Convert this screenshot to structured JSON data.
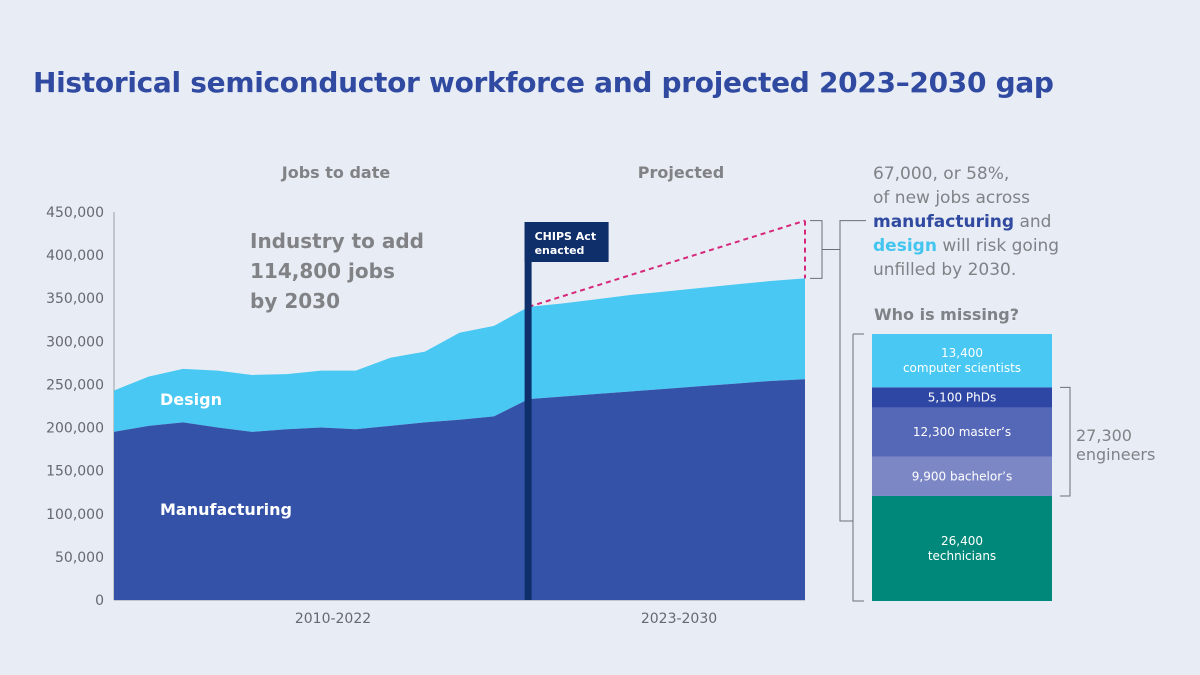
{
  "title": "Historical semiconductor workforce and projected 2023–2030 gap",
  "colors": {
    "manufacturing": "#3452a7",
    "design": "#48c8f2",
    "chips_marker": "#0f2f6b",
    "gap_line": "#d6287a",
    "phd": "#2e47a5",
    "masters": "#5567b7",
    "bachelors": "#7c87c5",
    "technicians": "#00897a",
    "computer_scientists": "#48c8f2"
  },
  "chart_data": [
    {
      "type": "area",
      "stacked": true,
      "section_labels": [
        "Jobs to date",
        "Projected"
      ],
      "x_labels": [
        "2010-2022",
        "2023-2030"
      ],
      "x": [
        "2010",
        "2011",
        "2012",
        "2013",
        "2014",
        "2015",
        "2016",
        "2017",
        "2018",
        "2019",
        "2020",
        "2021",
        "2022",
        "2023",
        "2024",
        "2025",
        "2026",
        "2027",
        "2028",
        "2029",
        "2030"
      ],
      "series": [
        {
          "name": "Manufacturing",
          "values": [
            195000,
            202000,
            206000,
            200000,
            195000,
            198000,
            200000,
            198000,
            202000,
            206000,
            209000,
            213000,
            233000,
            236000,
            239000,
            242000,
            245000,
            248000,
            251000,
            254000,
            256000
          ]
        },
        {
          "name": "Design",
          "values": [
            48000,
            57000,
            62000,
            66000,
            66000,
            64000,
            66000,
            68000,
            79000,
            82000,
            101000,
            105000,
            107000,
            108000,
            110000,
            112000,
            113000,
            114000,
            115000,
            116000,
            117000
          ]
        }
      ],
      "demand_line": {
        "x": [
          "2022",
          "2030"
        ],
        "values": [
          340000,
          440000
        ]
      },
      "marker": {
        "x": "2022",
        "label": [
          "CHIPS Act",
          "enacted"
        ]
      },
      "headline": [
        "Industry to add",
        "114,800 jobs",
        "by 2030"
      ],
      "ylim": [
        0,
        450000
      ],
      "yticks": [
        "0",
        "50,000",
        "100,000",
        "150,000",
        "200,000",
        "250,000",
        "300,000",
        "350,000",
        "400,000",
        "450,000"
      ],
      "grid": false
    },
    {
      "type": "bar",
      "stacked": true,
      "title": "Who is missing?",
      "segments": [
        {
          "name": "technicians",
          "value": 26400,
          "label": [
            "26,400",
            "technicians"
          ]
        },
        {
          "name": "bachelors",
          "value": 9900,
          "label": [
            "9,900 bachelor’s"
          ]
        },
        {
          "name": "masters",
          "value": 12300,
          "label": [
            "12,300 master’s"
          ]
        },
        {
          "name": "phd",
          "value": 5100,
          "label": [
            "5,100 PhDs"
          ]
        },
        {
          "name": "computer_scientists",
          "value": 13400,
          "label": [
            "13,400",
            "computer scientists"
          ]
        }
      ],
      "engineers_total": [
        "27,300",
        "engineers"
      ]
    }
  ],
  "callout": {
    "line1": "67,000, or 58%,",
    "line2": "of new jobs across",
    "manufacturing_word": "manufacturing",
    "and_word": " and",
    "design_word": "design",
    "line4_rest": " will risk going",
    "line5": "unfilled by 2030."
  }
}
